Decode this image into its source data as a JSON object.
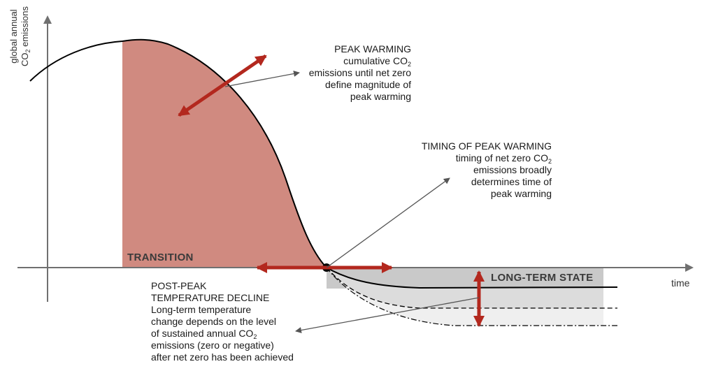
{
  "axes": {
    "y_label_line1": "global annual",
    "y_label_line2_pre": "CO",
    "y_label_line2_sub": "2",
    "y_label_line2_post": " emissions",
    "x_label": "time"
  },
  "regions": {
    "transition": "TRANSITION",
    "long_term_state": "LONG-TERM STATE"
  },
  "peak_warming": {
    "title": "PEAK WARMING",
    "line1_pre": "cumulative CO",
    "line1_sub": "2",
    "line2": "emissions until net zero",
    "line3": "define magnitude of",
    "line4": "peak warming"
  },
  "timing": {
    "title": "TIMING OF PEAK WARMING",
    "line1_pre": "timing of net zero CO",
    "line1_sub": "2",
    "line2": "emissions broadly",
    "line3": "determines time of",
    "line4": "peak warming"
  },
  "post_peak": {
    "title1": "POST-PEAK",
    "title2": "TEMPERATURE DECLINE",
    "line1": "Long-term temperature",
    "line2": "change depends on the level",
    "line3_pre": "of sustained annual CO",
    "line3_sub": "2",
    "line4": "emissions (zero or negative)",
    "line5": "after net zero has been achieved"
  },
  "colors": {
    "transition_fill": "#d08a80",
    "arrow_red": "#b3281e",
    "long_term_dark": "#c9c9c9",
    "long_term_mid": "#dcdcdc",
    "long_term_light": "#efefef",
    "axis": "#707070",
    "curve": "#000000"
  }
}
